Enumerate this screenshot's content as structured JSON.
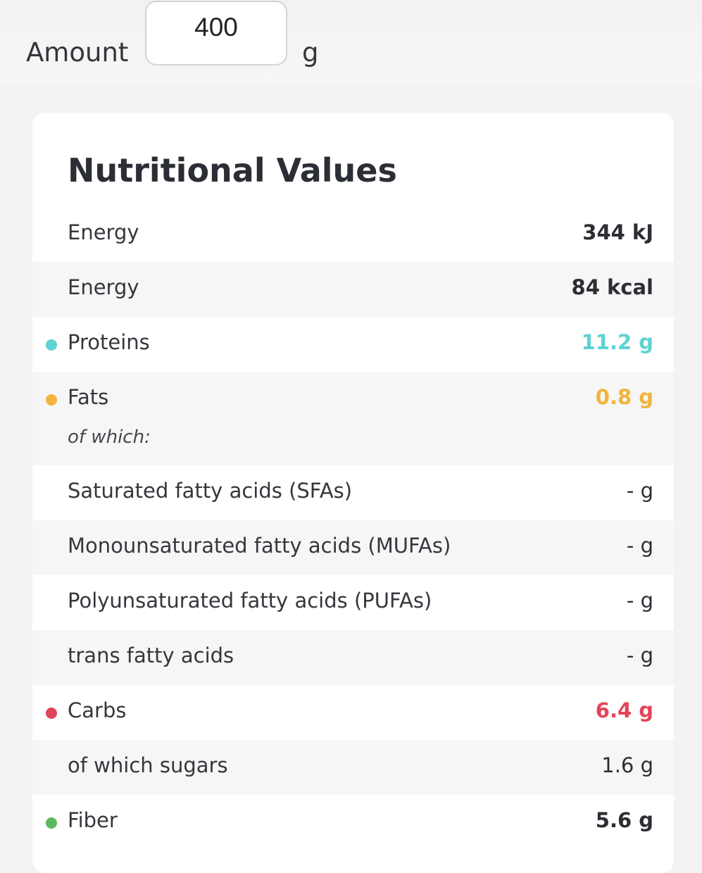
{
  "amount": {
    "label": "Amount",
    "value": "400",
    "unit": "g"
  },
  "card": {
    "title": "Nutritional Values"
  },
  "rows": [
    {
      "name": "Energy",
      "value": "344 kJ"
    },
    {
      "name": "Energy",
      "value": "84 kcal"
    },
    {
      "name": "Proteins",
      "value": "11.2 g",
      "color": "#5dd3d2"
    },
    {
      "name": "Fats",
      "value": "0.8 g",
      "color": "#f1b43c",
      "sub": "of which:"
    },
    {
      "name": "Saturated fatty acids (SFAs)",
      "value": "- g"
    },
    {
      "name": "Monounsaturated fatty acids (MUFAs)",
      "value": "- g"
    },
    {
      "name": "Polyunsaturated fatty acids (PUFAs)",
      "value": "- g"
    },
    {
      "name": "trans fatty acids",
      "value": "- g"
    },
    {
      "name": "Carbs",
      "value": "6.4 g",
      "color": "#e24458"
    },
    {
      "name": "of which sugars",
      "value": "1.6 g"
    },
    {
      "name": "Fiber",
      "value": "5.6 g",
      "color": "#5cb85c"
    }
  ]
}
